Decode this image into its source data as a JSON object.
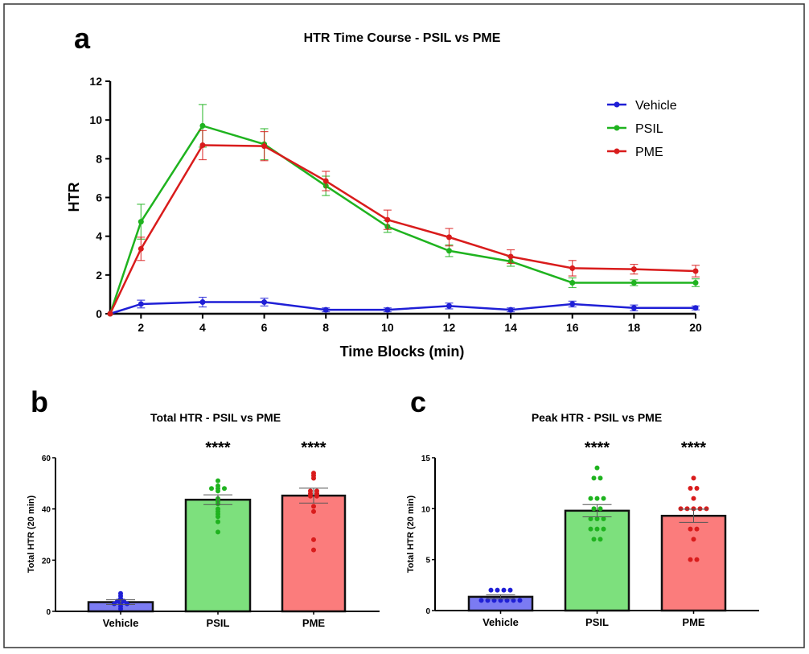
{
  "panel_labels": {
    "a": "a",
    "b": "b",
    "c": "c"
  },
  "colors": {
    "Vehicle": "#1f1fd6",
    "PSIL": "#1fb31f",
    "PME": "#d91c1c",
    "Vehicle_bar": "#7b7bf2",
    "PSIL_bar": "#7de07d",
    "PME_bar": "#fb7c7c"
  },
  "chart_data": [
    {
      "type": "line",
      "title": "HTR Time Course - PSIL vs PME",
      "xlabel": "Time Blocks (min)",
      "ylabel": "HTR",
      "xlim": [
        1,
        20
      ],
      "ylim": [
        0,
        12
      ],
      "xticks": [
        2,
        4,
        6,
        8,
        10,
        12,
        14,
        16,
        18,
        20
      ],
      "yticks": [
        0,
        2,
        4,
        6,
        8,
        10,
        12
      ],
      "legend": "top-right",
      "x": [
        1,
        2,
        4,
        6,
        8,
        10,
        12,
        14,
        16,
        18,
        20
      ],
      "series": [
        {
          "name": "Vehicle",
          "values": [
            0,
            0.5,
            0.6,
            0.6,
            0.2,
            0.2,
            0.4,
            0.2,
            0.5,
            0.3,
            0.3
          ],
          "error": [
            0,
            0.2,
            0.25,
            0.2,
            0.1,
            0.1,
            0.15,
            0.1,
            0.15,
            0.15,
            0.1
          ]
        },
        {
          "name": "PSIL",
          "values": [
            0,
            4.75,
            9.7,
            8.75,
            6.6,
            4.5,
            3.25,
            2.7,
            1.6,
            1.6,
            1.6
          ],
          "error": [
            0,
            0.9,
            1.1,
            0.8,
            0.5,
            0.3,
            0.3,
            0.25,
            0.25,
            0.15,
            0.2
          ]
        },
        {
          "name": "PME",
          "values": [
            0,
            3.35,
            8.7,
            8.65,
            6.85,
            4.85,
            3.95,
            2.95,
            2.35,
            2.3,
            2.2
          ],
          "error": [
            0,
            0.6,
            0.75,
            0.75,
            0.5,
            0.5,
            0.45,
            0.35,
            0.4,
            0.25,
            0.3
          ]
        }
      ]
    },
    {
      "type": "bar",
      "title": "Total HTR - PSIL vs PME",
      "ylabel": "Total HTR (20 min)",
      "ylim": [
        0,
        60
      ],
      "yticks": [
        0,
        20,
        40,
        60
      ],
      "categories": [
        "Vehicle",
        "PSIL",
        "PME"
      ],
      "values": [
        3.6,
        43.6,
        45.2
      ],
      "sem": [
        0.9,
        1.9,
        2.9
      ],
      "significance": [
        "",
        "****",
        "****"
      ],
      "points": [
        [
          7,
          6,
          5,
          4,
          3,
          3,
          4,
          2,
          3,
          1
        ],
        [
          51,
          48,
          48,
          49,
          48,
          47,
          44,
          43,
          42,
          40,
          39,
          38,
          37,
          35,
          31
        ],
        [
          54,
          53,
          52,
          47,
          47,
          46,
          46,
          45,
          45,
          41,
          39,
          28,
          24
        ]
      ]
    },
    {
      "type": "bar",
      "title": "Peak HTR - PSIL vs PME",
      "ylabel": "Total HTR (20 min)",
      "ylim": [
        0,
        15
      ],
      "yticks": [
        0,
        5,
        10,
        15
      ],
      "categories": [
        "Vehicle",
        "PSIL",
        "PME"
      ],
      "values": [
        1.35,
        9.8,
        9.3
      ],
      "sem": [
        0.2,
        0.6,
        0.65
      ],
      "significance": [
        "",
        "****",
        "****"
      ],
      "points": [
        [
          2,
          2,
          2,
          2,
          1,
          1,
          1,
          1,
          1,
          1,
          1
        ],
        [
          14,
          13,
          13,
          11,
          11,
          11,
          10,
          10,
          9,
          9,
          9,
          8,
          8,
          8,
          7,
          7
        ],
        [
          13,
          12,
          12,
          11,
          10,
          10,
          10,
          10,
          10,
          8,
          8,
          7,
          5,
          5
        ]
      ]
    }
  ]
}
